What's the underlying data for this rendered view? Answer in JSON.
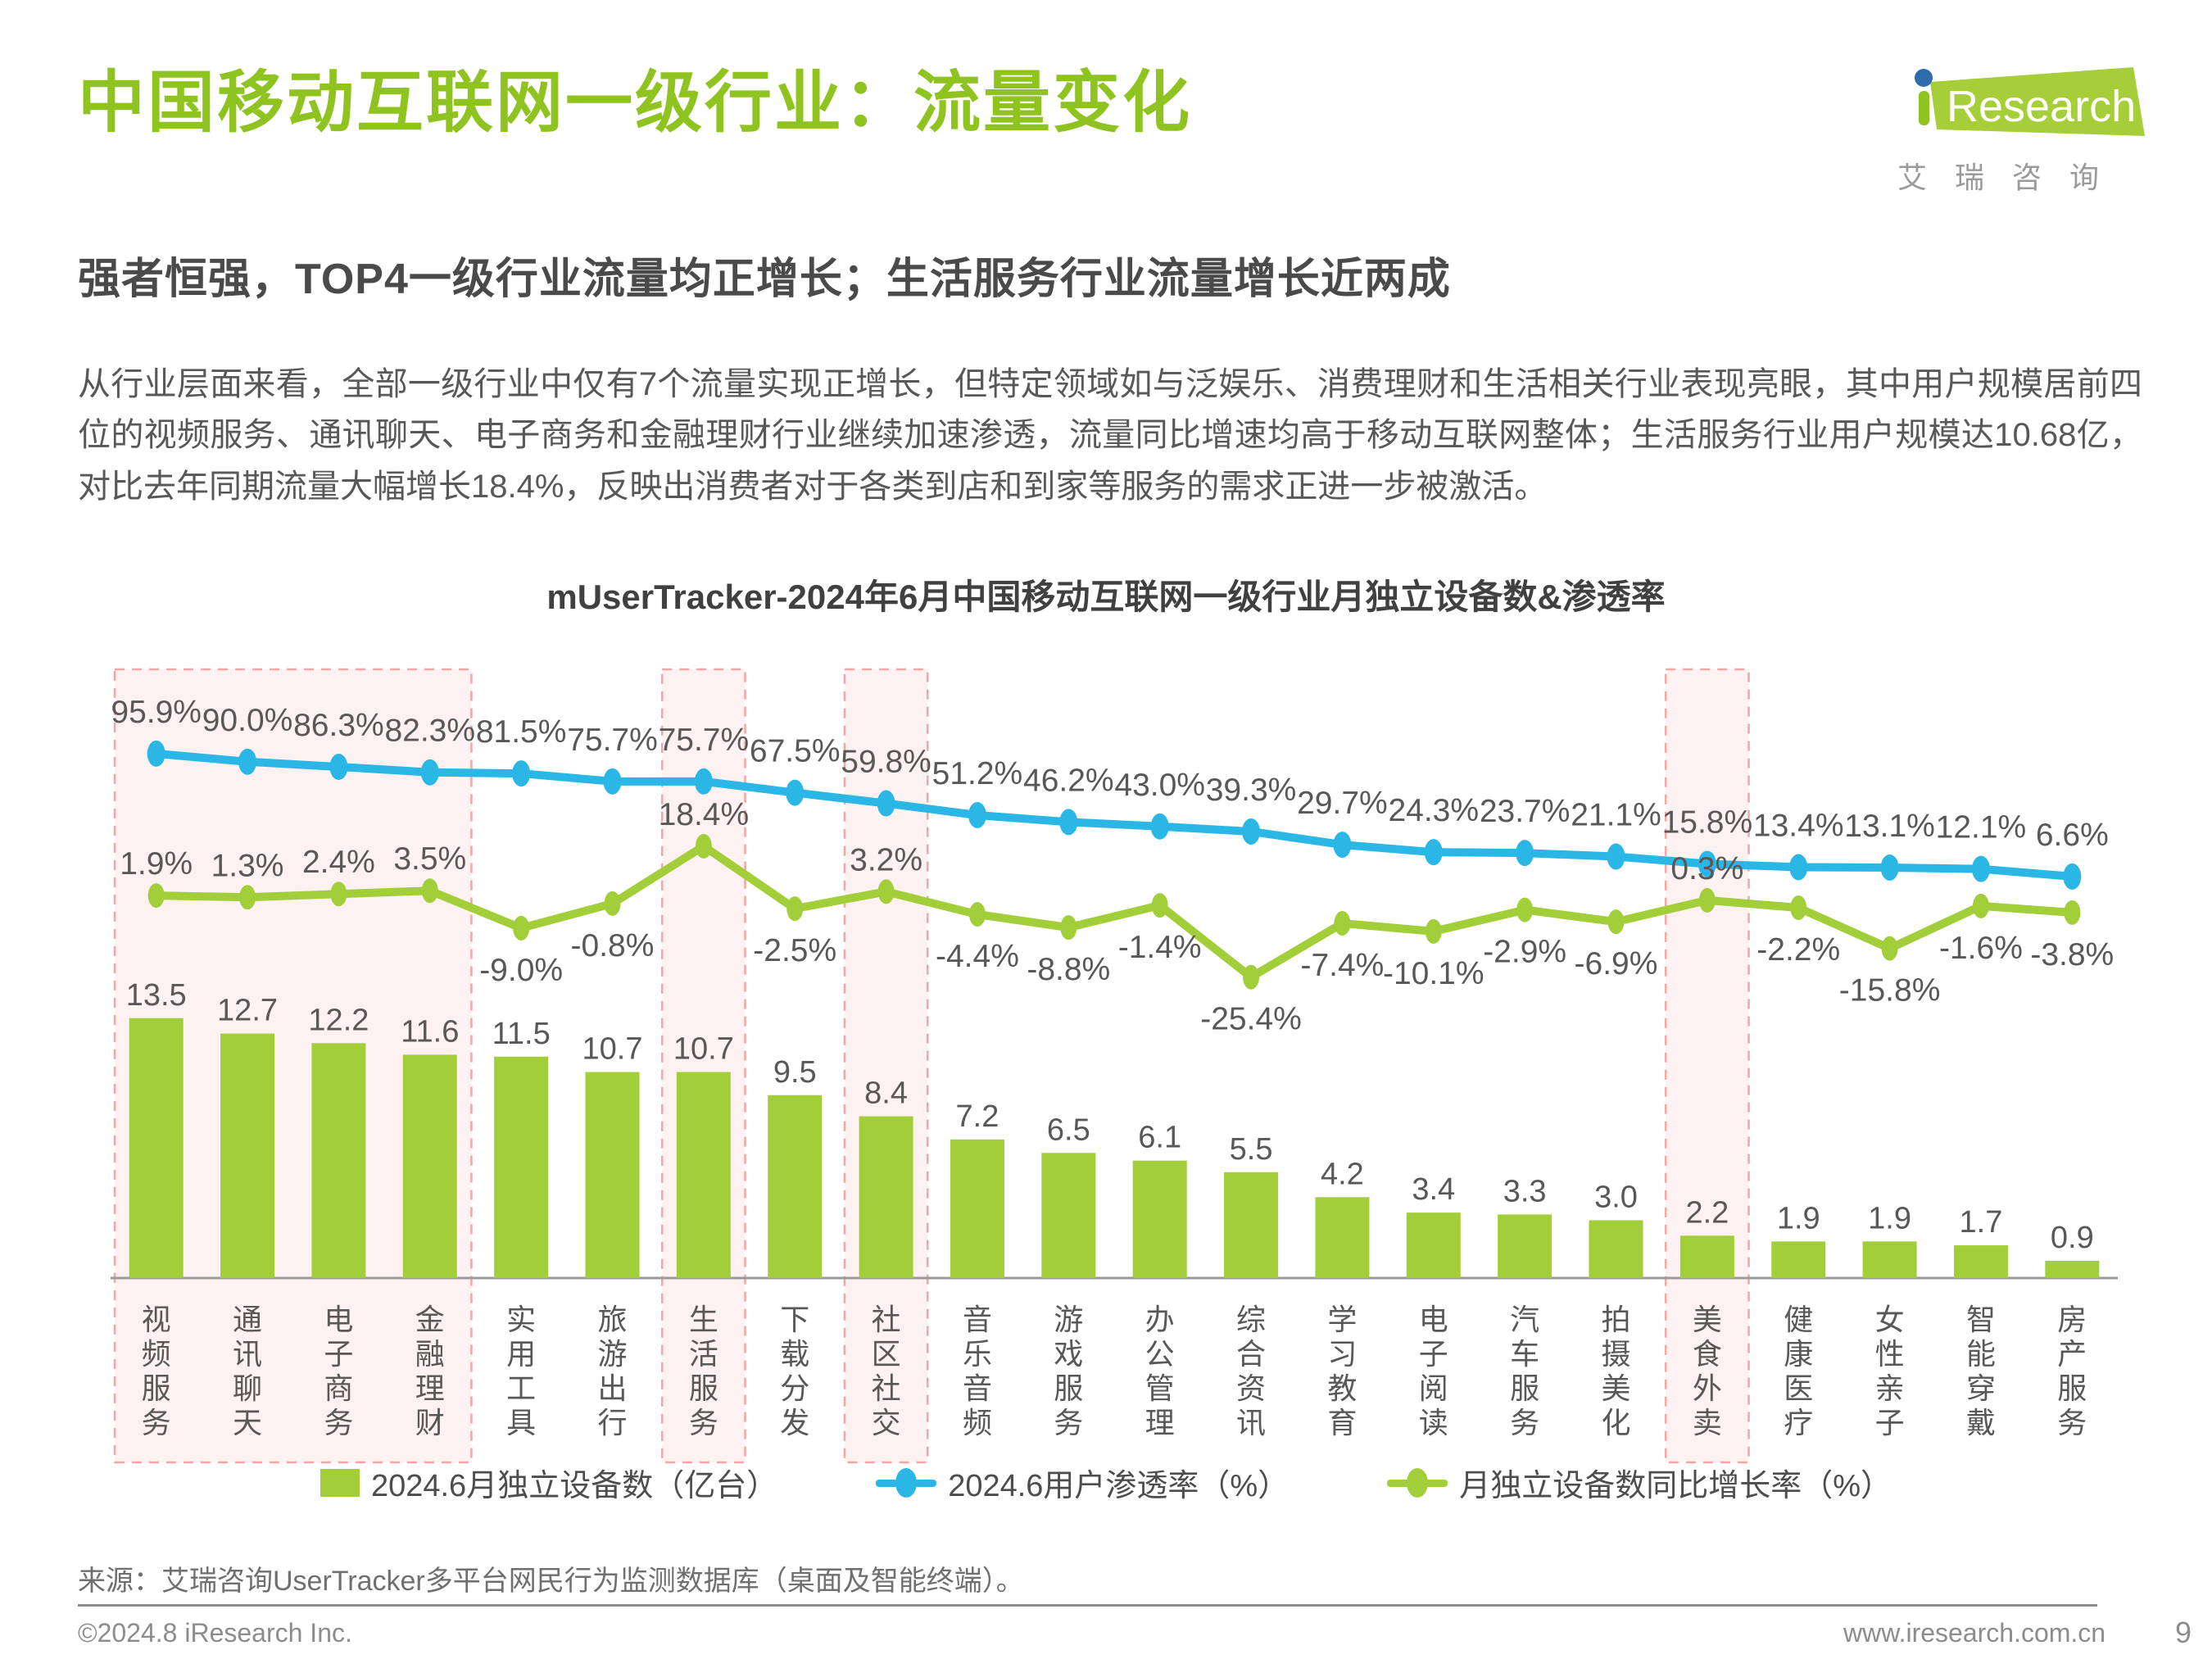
{
  "page": {
    "title": "中国移动互联网一级行业：流量变化",
    "subtitle": "强者恒强，TOP4一级行业流量均正增长；生活服务行业流量增长近两成",
    "body": "从行业层面来看，全部一级行业中仅有7个流量实现正增长，但特定领域如与泛娱乐、消费理财和生活相关行业表现亮眼，其中用户规模居前四位的视频服务、通讯聊天、电子商务和金融理财行业继续加速渗透，流量同比增速均高于移动互联网整体；生活服务行业用户规模达10.68亿，对比去年同期流量大幅增长18.4%，反映出消费者对于各类到店和到家等服务的需求正进一步被激活。"
  },
  "logo": {
    "brand": "Research",
    "cn": "艾瑞咨询"
  },
  "chart_data": {
    "type": "combo-bar-line",
    "title": "mUserTracker-2024年6月中国移动互联网一级行业月独立设备数&渗透率",
    "categories": [
      "视频服务",
      "通讯聊天",
      "电子商务",
      "金融理财",
      "实用工具",
      "旅游出行",
      "生活服务",
      "下载分发",
      "社区社交",
      "音乐音频",
      "游戏服务",
      "办公管理",
      "综合资讯",
      "学习教育",
      "电子阅读",
      "汽车服务",
      "拍摄美化",
      "美食外卖",
      "健康医疗",
      "女性亲子",
      "智能穿戴",
      "房产服务"
    ],
    "series": [
      {
        "name": "2024.6月独立设备数（亿台）",
        "type": "bar",
        "color": "#a2ce39",
        "values": [
          13.5,
          12.7,
          12.2,
          11.6,
          11.5,
          10.7,
          10.7,
          9.5,
          8.4,
          7.2,
          6.5,
          6.1,
          5.5,
          4.2,
          3.4,
          3.3,
          3.0,
          2.2,
          1.9,
          1.9,
          1.7,
          0.9
        ]
      },
      {
        "name": "2024.6用户渗透率（%）",
        "type": "line",
        "color": "#2bb7e5",
        "values": [
          95.9,
          90.0,
          86.3,
          82.3,
          81.5,
          75.7,
          75.7,
          67.5,
          59.8,
          51.2,
          46.2,
          43.0,
          39.3,
          29.7,
          24.3,
          23.7,
          21.1,
          15.8,
          13.4,
          13.1,
          12.1,
          6.6
        ]
      },
      {
        "name": "月独立设备数同比增长率（%）",
        "type": "line",
        "color": "#a2ce39",
        "values": [
          1.9,
          1.3,
          2.4,
          3.5,
          -9.0,
          -0.8,
          18.4,
          -2.5,
          3.2,
          -4.4,
          -8.8,
          -1.4,
          -25.4,
          -7.4,
          -10.1,
          -2.9,
          -6.9,
          0.3,
          -2.2,
          -15.8,
          -1.6,
          -3.8
        ]
      }
    ],
    "highlight_groups": [
      [
        0,
        3
      ],
      [
        6,
        6
      ],
      [
        8,
        8
      ],
      [
        17,
        17
      ]
    ],
    "highlight_fill": "#fdf1f1",
    "highlight_border": "#f2a6a6",
    "label_color": "#595757",
    "axis_color": "#9a9a9a",
    "grid": false,
    "legend_position": "bottom"
  },
  "source": "来源：艾瑞咨询UserTracker多平台网民行为监测数据库（桌面及智能终端）。",
  "footer": {
    "copyright": "©2024.8 iResearch Inc.",
    "url": "www.iresearch.com.cn",
    "page": "9"
  }
}
